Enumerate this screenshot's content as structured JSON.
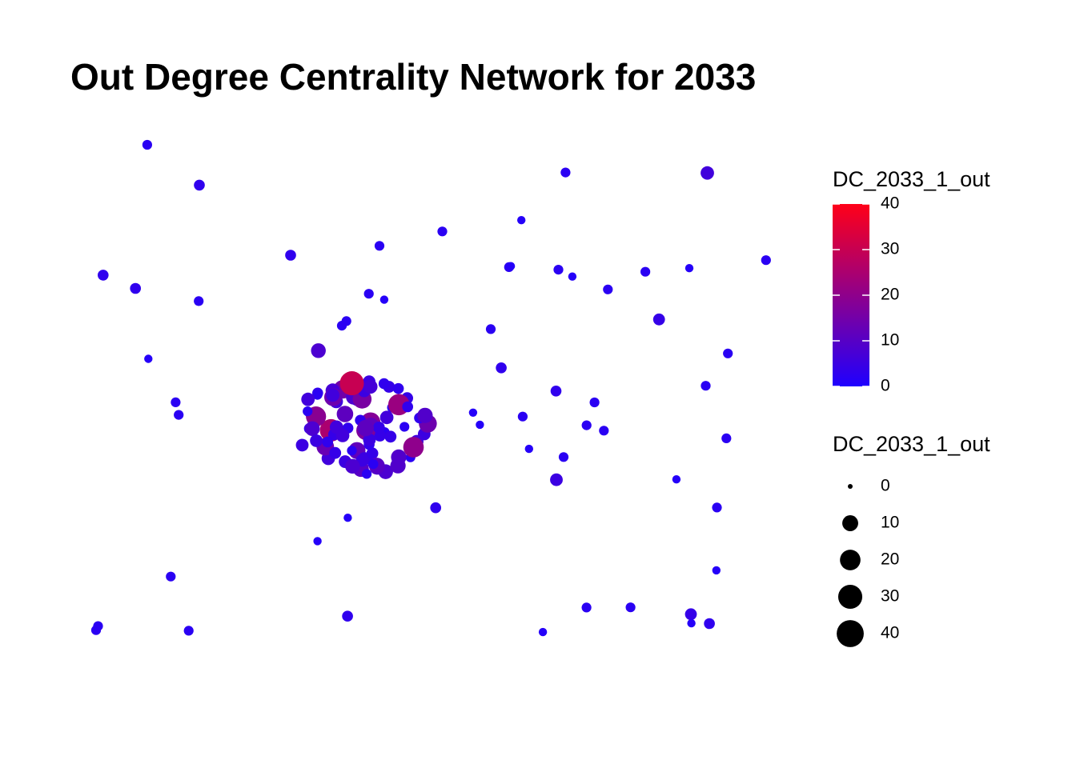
{
  "chart_data": {
    "type": "network",
    "title": "Out Degree Centrality Network for 2033",
    "values": [
      2,
      3,
      2,
      1,
      2,
      5,
      2,
      1,
      2,
      3,
      1,
      2,
      2,
      1,
      3,
      2,
      4,
      2,
      1,
      2,
      2,
      3,
      1,
      2,
      6,
      2,
      1,
      2,
      2,
      3,
      1,
      2,
      2,
      1,
      2,
      3,
      2,
      1,
      2,
      8,
      2,
      2,
      1,
      3,
      2,
      1,
      2,
      2,
      4,
      1,
      2,
      3,
      2,
      1,
      2,
      2,
      1,
      3,
      2,
      2,
      3,
      5,
      8,
      2,
      12,
      4,
      6,
      15,
      3,
      2,
      9,
      18,
      4,
      7,
      3,
      10,
      2,
      5,
      22,
      6,
      3,
      8,
      4,
      14,
      2,
      6,
      11,
      3,
      5,
      25,
      4,
      2,
      7,
      16,
      3,
      5,
      9,
      2,
      6,
      20,
      4,
      3,
      12,
      5,
      8,
      2,
      4,
      17,
      6,
      3,
      10,
      5,
      2,
      7,
      13,
      4,
      3,
      9,
      6,
      2,
      5,
      8,
      19,
      4,
      3,
      11,
      6,
      2,
      7,
      5,
      3,
      14,
      4,
      8,
      2,
      6,
      30,
      3,
      5,
      9
    ],
    "color_legend": {
      "name": "DC_2033_1_out",
      "lim": [
        0,
        40
      ],
      "ticks": [
        0,
        10,
        20,
        30,
        40
      ],
      "low": "#1f00ff",
      "high": "#ff0018"
    },
    "size_legend": {
      "name": "DC_2033_1_out",
      "values": [
        0,
        10,
        20,
        30,
        40
      ],
      "color": "#000000"
    }
  }
}
